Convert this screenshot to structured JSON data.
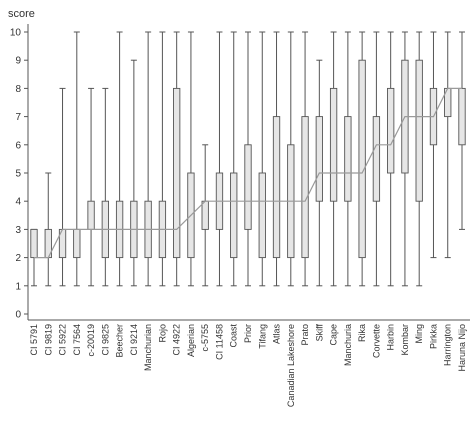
{
  "chart_data": {
    "type": "boxplot",
    "ylabel": "score",
    "ylim": [
      0,
      10
    ],
    "yticks": [
      0,
      1,
      2,
      3,
      4,
      5,
      6,
      7,
      8,
      9,
      10
    ],
    "categories": [
      "CI 5791",
      "CI 9819",
      "CI 5922",
      "CI 7564",
      "c-20019",
      "CI 9825",
      "Beecher",
      "CI 9214",
      "Manchurian",
      "Rojo",
      "CI 4922",
      "Algerian",
      "c-5755",
      "CI 11458",
      "Coast",
      "Prior",
      "Tifang",
      "Atlas",
      "Canadian Lakeshore",
      "Prato",
      "Skiff",
      "Cape",
      "Manchuria",
      "Rika",
      "Corvette",
      "Harbin",
      "Kombar",
      "Ming",
      "Pirkka",
      "Harrington",
      "Haruna Nijo"
    ],
    "boxes": [
      {
        "min": 1,
        "q1": 2,
        "median": 2,
        "q3": 3,
        "max": 3
      },
      {
        "min": 1,
        "q1": 2,
        "median": 2,
        "q3": 3,
        "max": 5
      },
      {
        "min": 1,
        "q1": 2,
        "median": 3,
        "q3": 3,
        "max": 8
      },
      {
        "min": 1,
        "q1": 2,
        "median": 3,
        "q3": 3,
        "max": 10
      },
      {
        "min": 1,
        "q1": 3,
        "median": 3,
        "q3": 4,
        "max": 8
      },
      {
        "min": 1,
        "q1": 2,
        "median": 3,
        "q3": 4,
        "max": 8
      },
      {
        "min": 1,
        "q1": 2,
        "median": 3,
        "q3": 4,
        "max": 10
      },
      {
        "min": 1,
        "q1": 2,
        "median": 3,
        "q3": 4,
        "max": 9
      },
      {
        "min": 1,
        "q1": 2,
        "median": 3,
        "q3": 4,
        "max": 10
      },
      {
        "min": 1,
        "q1": 2,
        "median": 3,
        "q3": 4,
        "max": 10
      },
      {
        "min": 1,
        "q1": 2,
        "median": 3,
        "q3": 8,
        "max": 10
      },
      {
        "min": 1,
        "q1": 2,
        "median": 3.5,
        "q3": 5,
        "max": 10
      },
      {
        "min": 1,
        "q1": 3,
        "median": 4,
        "q3": 4,
        "max": 6
      },
      {
        "min": 1,
        "q1": 3,
        "median": 4,
        "q3": 5,
        "max": 10
      },
      {
        "min": 1,
        "q1": 2,
        "median": 4,
        "q3": 5,
        "max": 10
      },
      {
        "min": 1,
        "q1": 3,
        "median": 4,
        "q3": 6,
        "max": 10
      },
      {
        "min": 1,
        "q1": 2,
        "median": 4,
        "q3": 5,
        "max": 10
      },
      {
        "min": 1,
        "q1": 2,
        "median": 4,
        "q3": 7,
        "max": 10
      },
      {
        "min": 1,
        "q1": 2,
        "median": 4,
        "q3": 6,
        "max": 10
      },
      {
        "min": 1,
        "q1": 2,
        "median": 4,
        "q3": 7,
        "max": 10
      },
      {
        "min": 1,
        "q1": 4,
        "median": 5,
        "q3": 7,
        "max": 9
      },
      {
        "min": 1,
        "q1": 4,
        "median": 5,
        "q3": 8,
        "max": 10
      },
      {
        "min": 1,
        "q1": 4,
        "median": 5,
        "q3": 7,
        "max": 10
      },
      {
        "min": 1,
        "q1": 2,
        "median": 5,
        "q3": 9,
        "max": 10
      },
      {
        "min": 1,
        "q1": 4,
        "median": 6,
        "q3": 7,
        "max": 10
      },
      {
        "min": 1,
        "q1": 5,
        "median": 6,
        "q3": 8,
        "max": 10
      },
      {
        "min": 1,
        "q1": 5,
        "median": 7,
        "q3": 9,
        "max": 10
      },
      {
        "min": 1,
        "q1": 4,
        "median": 7,
        "q3": 9,
        "max": 10
      },
      {
        "min": 2,
        "q1": 6,
        "median": 7,
        "q3": 8,
        "max": 10
      },
      {
        "min": 2,
        "q1": 7,
        "median": 8,
        "q3": 8,
        "max": 10
      },
      {
        "min": 3,
        "q1": 6,
        "median": 8,
        "q3": 8,
        "max": 10
      }
    ],
    "grid": false,
    "legend": "none",
    "colors": {
      "box_fill": "#e6e6e6",
      "box_stroke": "#555555",
      "median_line": "#9a9a9a"
    }
  }
}
